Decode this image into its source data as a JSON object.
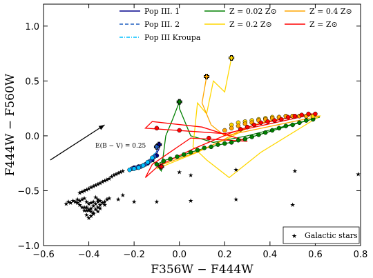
{
  "chart_data": {
    "type": "scatter",
    "xlabel": "F356W − F444W",
    "ylabel": "F444W − F560W",
    "xlim": [
      -0.6,
      0.8
    ],
    "ylim": [
      -1.0,
      1.2
    ],
    "xticks": [
      "−0.6",
      "−0.4",
      "−0.2",
      "0.0",
      "0.2",
      "0.4",
      "0.6",
      "0.8"
    ],
    "xtick_values": [
      -0.6,
      -0.4,
      -0.2,
      0.0,
      0.2,
      0.4,
      0.6,
      0.8
    ],
    "yticks": [
      "−1.0",
      "−0.5",
      "0.0",
      "0.5",
      "1.0"
    ],
    "ytick_values": [
      -1.0,
      -0.5,
      0.0,
      0.5,
      1.0
    ],
    "legend": {
      "placement": "top",
      "entries": [
        {
          "label": "Pop III. 1",
          "color": "#00008b",
          "style": "solid"
        },
        {
          "label": "Pop III. 2",
          "color": "#1f5fbf",
          "style": "dashed"
        },
        {
          "label": "Pop III Kroupa",
          "color": "#00bfff",
          "style": "dashdot"
        },
        {
          "label": "Z = 0.02 Z⊙",
          "color": "#008000",
          "style": "solid"
        },
        {
          "label": "Z = 0.2 Z⊙",
          "color": "#ffd700",
          "style": "solid"
        },
        {
          "label": "Z = 0.4 Z⊙",
          "color": "#ffa500",
          "style": "solid"
        },
        {
          "label": "Z = Z⊙",
          "color": "#ff0000",
          "style": "solid"
        }
      ]
    },
    "galactic_legend": {
      "label": "Galactic stars",
      "placement": "lower-right"
    },
    "annotation": {
      "text": "E(B − V) = 0.25",
      "arrow_from": [
        -0.57,
        -0.22
      ],
      "arrow_to": [
        -0.33,
        0.1
      ]
    },
    "series": [
      {
        "name": "Z = 0.02 Z⊙",
        "color": "#008000",
        "line": [
          [
            -0.1,
            -0.26
          ],
          [
            -0.06,
            -0.22
          ],
          [
            0.0,
            -0.19
          ],
          [
            0.05,
            -0.15
          ],
          [
            0.1,
            -0.12
          ],
          [
            0.18,
            -0.08
          ],
          [
            0.25,
            -0.05
          ],
          [
            0.32,
            -0.01
          ],
          [
            0.4,
            0.04
          ],
          [
            0.48,
            0.09
          ],
          [
            0.55,
            0.13
          ],
          [
            0.6,
            0.16
          ],
          [
            0.62,
            0.17
          ],
          [
            0.3,
            0.0
          ],
          [
            0.15,
            -0.06
          ],
          [
            0.05,
            0.0
          ],
          [
            0.0,
            0.25
          ],
          [
            0.0,
            0.31
          ],
          [
            -0.03,
            0.15
          ],
          [
            -0.06,
            0.0
          ],
          [
            -0.08,
            -0.32
          ],
          [
            -0.12,
            -0.22
          ]
        ],
        "points": [
          [
            -0.1,
            -0.26
          ],
          [
            -0.07,
            -0.23
          ],
          [
            -0.04,
            -0.21
          ],
          [
            -0.01,
            -0.19
          ],
          [
            0.02,
            -0.17
          ],
          [
            0.05,
            -0.15
          ],
          [
            0.08,
            -0.13
          ],
          [
            0.11,
            -0.11
          ],
          [
            0.14,
            -0.1
          ],
          [
            0.17,
            -0.08
          ],
          [
            0.2,
            -0.07
          ],
          [
            0.23,
            -0.06
          ],
          [
            0.26,
            -0.04
          ],
          [
            0.29,
            -0.03
          ],
          [
            0.32,
            -0.01
          ],
          [
            0.35,
            0.01
          ],
          [
            0.38,
            0.03
          ],
          [
            0.41,
            0.05
          ],
          [
            0.44,
            0.07
          ],
          [
            0.47,
            0.09
          ],
          [
            0.5,
            0.1
          ],
          [
            0.53,
            0.12
          ],
          [
            0.56,
            0.14
          ],
          [
            0.59,
            0.15
          ]
        ],
        "start": [
          0.0,
          0.31
        ]
      },
      {
        "name": "Z = 0.2 Z⊙",
        "color": "#ffd700",
        "line": [
          [
            -0.1,
            -0.3
          ],
          [
            -0.04,
            -0.25
          ],
          [
            0.02,
            -0.2
          ],
          [
            0.08,
            -0.15
          ],
          [
            0.15,
            -0.08
          ],
          [
            0.22,
            -0.02
          ],
          [
            0.28,
            0.05
          ],
          [
            0.33,
            0.1
          ],
          [
            0.38,
            0.13
          ],
          [
            0.44,
            0.15
          ],
          [
            0.5,
            0.17
          ],
          [
            0.56,
            0.18
          ],
          [
            0.62,
            0.18
          ],
          [
            0.36,
            -0.15
          ],
          [
            0.22,
            -0.38
          ],
          [
            0.12,
            -0.22
          ],
          [
            0.06,
            -0.1
          ],
          [
            0.08,
            0.3
          ],
          [
            0.12,
            0.2
          ],
          [
            0.15,
            0.5
          ],
          [
            0.2,
            0.4
          ],
          [
            0.23,
            0.71
          ]
        ],
        "points": [
          [
            0.23,
            0.1
          ],
          [
            0.26,
            0.12
          ],
          [
            0.29,
            0.13
          ],
          [
            0.32,
            0.14
          ],
          [
            0.35,
            0.15
          ],
          [
            0.38,
            0.16
          ],
          [
            0.41,
            0.17
          ],
          [
            0.44,
            0.17
          ],
          [
            0.47,
            0.18
          ],
          [
            0.5,
            0.18
          ],
          [
            0.53,
            0.18
          ],
          [
            0.56,
            0.18
          ],
          [
            0.59,
            0.18
          ]
        ],
        "start": [
          0.23,
          0.71
        ]
      },
      {
        "name": "Z = 0.4 Z⊙",
        "color": "#ffa500",
        "line": [
          [
            -0.1,
            -0.28
          ],
          [
            -0.02,
            -0.22
          ],
          [
            0.06,
            -0.16
          ],
          [
            0.14,
            -0.09
          ],
          [
            0.2,
            -0.03
          ],
          [
            0.26,
            0.04
          ],
          [
            0.32,
            0.09
          ],
          [
            0.38,
            0.13
          ],
          [
            0.44,
            0.15
          ],
          [
            0.5,
            0.17
          ],
          [
            0.56,
            0.18
          ],
          [
            0.62,
            0.18
          ],
          [
            0.2,
            0.0
          ],
          [
            0.14,
            0.1
          ],
          [
            0.1,
            0.3
          ],
          [
            0.12,
            0.54
          ]
        ],
        "points": [
          [
            0.2,
            0.05
          ],
          [
            0.23,
            0.07
          ],
          [
            0.26,
            0.09
          ],
          [
            0.29,
            0.11
          ],
          [
            0.32,
            0.12
          ],
          [
            0.35,
            0.14
          ],
          [
            0.38,
            0.15
          ],
          [
            0.41,
            0.16
          ],
          [
            0.44,
            0.17
          ],
          [
            0.47,
            0.18
          ],
          [
            0.5,
            0.18
          ],
          [
            0.53,
            0.18
          ],
          [
            0.56,
            0.18
          ]
        ],
        "start": [
          0.12,
          0.54
        ]
      },
      {
        "name": "Z = Z⊙",
        "color": "#ff0000",
        "line": [
          [
            -0.1,
            -0.28
          ],
          [
            -0.02,
            -0.2
          ],
          [
            0.06,
            -0.12
          ],
          [
            0.14,
            -0.05
          ],
          [
            0.22,
            0.02
          ],
          [
            0.3,
            0.08
          ],
          [
            0.38,
            0.12
          ],
          [
            0.45,
            0.15
          ],
          [
            0.52,
            0.18
          ],
          [
            0.58,
            0.2
          ],
          [
            0.6,
            0.2
          ],
          [
            0.2,
            0.02
          ],
          [
            -0.15,
            0.07
          ],
          [
            -0.12,
            0.13
          ],
          [
            0.1,
            0.08
          ],
          [
            0.3,
            -0.05
          ],
          [
            0.05,
            -0.02
          ],
          [
            -0.12,
            -0.26
          ],
          [
            -0.15,
            -0.38
          ],
          [
            -0.08,
            -0.25
          ]
        ],
        "points": [
          [
            0.27,
            0.06
          ],
          [
            0.3,
            0.08
          ],
          [
            0.33,
            0.1
          ],
          [
            0.36,
            0.12
          ],
          [
            0.39,
            0.13
          ],
          [
            0.42,
            0.14
          ],
          [
            0.45,
            0.15
          ],
          [
            0.48,
            0.17
          ],
          [
            0.51,
            0.18
          ],
          [
            0.54,
            0.19
          ],
          [
            0.57,
            0.2
          ],
          [
            0.6,
            0.2
          ],
          [
            -0.1,
            0.07
          ],
          [
            0.0,
            0.05
          ],
          [
            0.13,
            -0.02
          ]
        ],
        "start": [
          -0.08,
          -0.28
        ]
      },
      {
        "name": "Pop III. 1",
        "color": "#00008b",
        "line": [
          [
            -0.2,
            -0.29
          ],
          [
            -0.16,
            -0.27
          ],
          [
            -0.13,
            -0.24
          ],
          [
            -0.11,
            -0.2
          ],
          [
            -0.09,
            -0.12
          ],
          [
            -0.09,
            -0.08
          ]
        ],
        "points": [
          [
            -0.2,
            -0.29
          ],
          [
            -0.18,
            -0.28
          ],
          [
            -0.16,
            -0.27
          ],
          [
            -0.14,
            -0.25
          ],
          [
            -0.12,
            -0.22
          ],
          [
            -0.1,
            -0.18
          ]
        ],
        "start": [
          -0.09,
          -0.08
        ]
      },
      {
        "name": "Pop III. 2",
        "color": "#1f5fbf",
        "line": [
          [
            -0.21,
            -0.3
          ],
          [
            -0.17,
            -0.28
          ],
          [
            -0.14,
            -0.25
          ],
          [
            -0.12,
            -0.21
          ],
          [
            -0.1,
            -0.14
          ],
          [
            -0.1,
            -0.1
          ]
        ],
        "points": [
          [
            -0.21,
            -0.3
          ],
          [
            -0.19,
            -0.29
          ],
          [
            -0.17,
            -0.28
          ],
          [
            -0.15,
            -0.26
          ],
          [
            -0.13,
            -0.23
          ],
          [
            -0.11,
            -0.19
          ]
        ],
        "start": [
          -0.1,
          -0.1
        ]
      },
      {
        "name": "Pop III Kroupa",
        "color": "#00bfff",
        "line": [
          [
            -0.22,
            -0.31
          ],
          [
            -0.18,
            -0.29
          ],
          [
            -0.15,
            -0.26
          ],
          [
            -0.13,
            -0.22
          ],
          [
            -0.11,
            -0.16
          ]
        ],
        "points": [
          [
            -0.22,
            -0.31
          ],
          [
            -0.2,
            -0.3
          ],
          [
            -0.18,
            -0.29
          ],
          [
            -0.16,
            -0.27
          ],
          [
            -0.14,
            -0.24
          ],
          [
            -0.12,
            -0.2
          ]
        ],
        "start": null
      }
    ],
    "galactic_stars": [
      [
        -0.5,
        -0.62
      ],
      [
        -0.49,
        -0.6
      ],
      [
        -0.48,
        -0.61
      ],
      [
        -0.47,
        -0.59
      ],
      [
        -0.46,
        -0.6
      ],
      [
        -0.45,
        -0.61
      ],
      [
        -0.44,
        -0.63
      ],
      [
        -0.43,
        -0.65
      ],
      [
        -0.42,
        -0.68
      ],
      [
        -0.41,
        -0.72
      ],
      [
        -0.4,
        -0.75
      ],
      [
        -0.39,
        -0.73
      ],
      [
        -0.38,
        -0.7
      ],
      [
        -0.37,
        -0.67
      ],
      [
        -0.36,
        -0.65
      ],
      [
        -0.35,
        -0.63
      ],
      [
        -0.34,
        -0.61
      ],
      [
        -0.33,
        -0.6
      ],
      [
        -0.32,
        -0.58
      ],
      [
        -0.31,
        -0.57
      ],
      [
        -0.43,
        -0.58
      ],
      [
        -0.42,
        -0.57
      ],
      [
        -0.41,
        -0.6
      ],
      [
        -0.4,
        -0.62
      ],
      [
        -0.39,
        -0.61
      ],
      [
        -0.38,
        -0.6
      ],
      [
        -0.37,
        -0.62
      ],
      [
        -0.36,
        -0.6
      ],
      [
        -0.35,
        -0.59
      ],
      [
        -0.41,
        -0.65
      ],
      [
        -0.4,
        -0.68
      ],
      [
        -0.39,
        -0.66
      ],
      [
        -0.38,
        -0.64
      ],
      [
        -0.37,
        -0.56
      ],
      [
        -0.36,
        -0.58
      ],
      [
        -0.45,
        -0.58
      ],
      [
        -0.44,
        -0.59
      ],
      [
        -0.44,
        -0.52
      ],
      [
        -0.43,
        -0.51
      ],
      [
        -0.42,
        -0.5
      ],
      [
        -0.41,
        -0.49
      ],
      [
        -0.4,
        -0.48
      ],
      [
        -0.39,
        -0.47
      ],
      [
        -0.38,
        -0.46
      ],
      [
        -0.37,
        -0.45
      ],
      [
        -0.36,
        -0.44
      ],
      [
        -0.35,
        -0.43
      ],
      [
        -0.34,
        -0.42
      ],
      [
        -0.33,
        -0.41
      ],
      [
        -0.32,
        -0.4
      ],
      [
        -0.31,
        -0.39
      ],
      [
        -0.3,
        -0.37
      ],
      [
        -0.29,
        -0.36
      ],
      [
        -0.28,
        -0.35
      ],
      [
        -0.27,
        -0.34
      ],
      [
        -0.26,
        -0.33
      ],
      [
        -0.25,
        -0.32
      ],
      [
        -0.42,
        -0.65
      ],
      [
        -0.41,
        -0.68
      ],
      [
        -0.4,
        -0.67
      ],
      [
        -0.39,
        -0.69
      ],
      [
        -0.38,
        -0.71
      ],
      [
        -0.36,
        -0.69
      ],
      [
        -0.35,
        -0.66
      ],
      [
        -0.33,
        -0.63
      ],
      [
        -0.27,
        -0.58
      ],
      [
        -0.25,
        -0.54
      ],
      [
        -0.2,
        -0.6
      ],
      [
        -0.1,
        -0.6
      ],
      [
        0.05,
        -0.59
      ],
      [
        0.25,
        -0.58
      ],
      [
        0.5,
        -0.63
      ],
      [
        0.05,
        -0.36
      ],
      [
        0.0,
        -0.33
      ],
      [
        0.25,
        -0.31
      ],
      [
        0.51,
        -0.32
      ],
      [
        0.79,
        -0.35
      ]
    ]
  }
}
